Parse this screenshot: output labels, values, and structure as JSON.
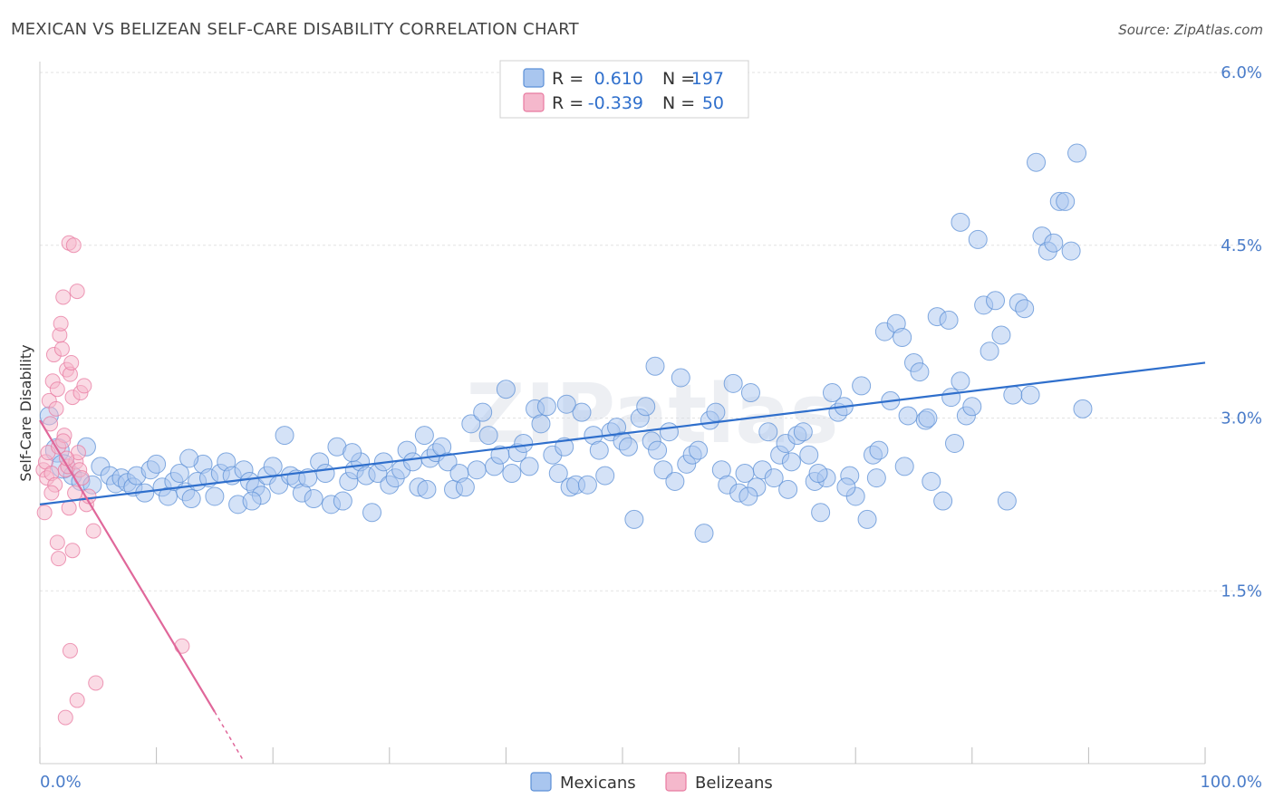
{
  "title": "MEXICAN VS BELIZEAN SELF-CARE DISABILITY CORRELATION CHART",
  "source": "Source: ZipAtlas.com",
  "watermark": "ZIPatlas",
  "colors": {
    "blue": "#5b8fd6",
    "blue_fill": "#a9c6ef",
    "pink": "#e87aa0",
    "pink_fill": "#f5b8cc",
    "blue_line": "#2f6fcc",
    "pink_line": "#e0679a",
    "tick_text": "#4a7cc9"
  },
  "legend_top": {
    "rows": [
      {
        "r_label": "R =",
        "r_value": "0.610",
        "n_label": "N =",
        "n_value": "197"
      },
      {
        "r_label": "R =",
        "r_value": "-0.339",
        "n_label": "N =",
        "n_value": "50"
      }
    ]
  },
  "legend_bottom": {
    "items": [
      "Mexicans",
      "Belizeans"
    ]
  },
  "chart_data": {
    "type": "scatter",
    "title": "MEXICAN VS BELIZEAN SELF-CARE DISABILITY CORRELATION CHART",
    "xlabel": "",
    "ylabel": "Self-Care Disability",
    "xlim": [
      0,
      100
    ],
    "ylim": [
      0,
      6.0
    ],
    "x_tick_labels": [
      "0.0%",
      "100.0%"
    ],
    "y_ticks": [
      1.5,
      3.0,
      4.5,
      6.0
    ],
    "y_tick_labels": [
      "1.5%",
      "3.0%",
      "4.5%",
      "6.0%"
    ],
    "grid": true,
    "legend_placement": "top-center",
    "series": [
      {
        "name": "Mexicans",
        "color": "#5b8fd6",
        "trend": {
          "x": [
            0,
            100
          ],
          "y": [
            2.25,
            3.48
          ]
        },
        "points": [
          [
            1.5,
            2.72
          ],
          [
            2.0,
            2.58
          ],
          [
            2.8,
            2.5
          ],
          [
            3.5,
            2.45
          ],
          [
            4.5,
            2.42
          ],
          [
            5.2,
            2.58
          ],
          [
            6.0,
            2.5
          ],
          [
            6.5,
            2.43
          ],
          [
            7.0,
            2.48
          ],
          [
            7.5,
            2.44
          ],
          [
            8.0,
            2.4
          ],
          [
            8.3,
            2.5
          ],
          [
            9.0,
            2.35
          ],
          [
            9.5,
            2.55
          ],
          [
            10.0,
            2.6
          ],
          [
            10.5,
            2.4
          ],
          [
            11.0,
            2.32
          ],
          [
            11.5,
            2.45
          ],
          [
            12.0,
            2.52
          ],
          [
            12.5,
            2.36
          ],
          [
            13.0,
            2.3
          ],
          [
            13.5,
            2.45
          ],
          [
            14.0,
            2.6
          ],
          [
            14.5,
            2.48
          ],
          [
            15.0,
            2.32
          ],
          [
            15.5,
            2.52
          ],
          [
            16.0,
            2.62
          ],
          [
            16.5,
            2.5
          ],
          [
            17.0,
            2.25
          ],
          [
            17.5,
            2.55
          ],
          [
            18.0,
            2.45
          ],
          [
            18.5,
            2.4
          ],
          [
            19.0,
            2.33
          ],
          [
            19.5,
            2.5
          ],
          [
            20.0,
            2.58
          ],
          [
            20.5,
            2.42
          ],
          [
            21.0,
            2.85
          ],
          [
            21.5,
            2.5
          ],
          [
            22.0,
            2.47
          ],
          [
            22.5,
            2.35
          ],
          [
            23.0,
            2.48
          ],
          [
            23.5,
            2.3
          ],
          [
            24.0,
            2.62
          ],
          [
            24.5,
            2.52
          ],
          [
            25.0,
            2.25
          ],
          [
            25.5,
            2.75
          ],
          [
            26.0,
            2.28
          ],
          [
            26.5,
            2.45
          ],
          [
            27.0,
            2.55
          ],
          [
            27.5,
            2.62
          ],
          [
            28.0,
            2.5
          ],
          [
            28.5,
            2.18
          ],
          [
            29.0,
            2.52
          ],
          [
            29.5,
            2.62
          ],
          [
            30.0,
            2.42
          ],
          [
            30.5,
            2.48
          ],
          [
            31.0,
            2.55
          ],
          [
            31.5,
            2.72
          ],
          [
            32.0,
            2.62
          ],
          [
            32.5,
            2.4
          ],
          [
            33.0,
            2.85
          ],
          [
            33.5,
            2.65
          ],
          [
            34.0,
            2.7
          ],
          [
            34.5,
            2.75
          ],
          [
            35.0,
            2.62
          ],
          [
            35.5,
            2.38
          ],
          [
            36.0,
            2.52
          ],
          [
            36.5,
            2.4
          ],
          [
            37.0,
            2.95
          ],
          [
            37.5,
            2.55
          ],
          [
            38.0,
            3.05
          ],
          [
            38.5,
            2.85
          ],
          [
            39.0,
            2.58
          ],
          [
            39.5,
            2.68
          ],
          [
            40.0,
            3.25
          ],
          [
            40.5,
            2.52
          ],
          [
            41.0,
            2.7
          ],
          [
            41.5,
            2.78
          ],
          [
            42.0,
            2.58
          ],
          [
            42.5,
            3.08
          ],
          [
            43.0,
            2.95
          ],
          [
            43.5,
            3.1
          ],
          [
            44.0,
            2.68
          ],
          [
            44.5,
            2.52
          ],
          [
            45.0,
            2.75
          ],
          [
            45.5,
            2.4
          ],
          [
            46.0,
            2.42
          ],
          [
            46.5,
            3.05
          ],
          [
            47.0,
            2.42
          ],
          [
            47.5,
            2.85
          ],
          [
            48.0,
            2.72
          ],
          [
            48.5,
            2.5
          ],
          [
            49.0,
            2.88
          ],
          [
            49.5,
            2.92
          ],
          [
            50.0,
            2.8
          ],
          [
            50.5,
            2.75
          ],
          [
            51.0,
            2.12
          ],
          [
            51.5,
            3.0
          ],
          [
            52.0,
            3.1
          ],
          [
            52.5,
            2.8
          ],
          [
            53.0,
            2.72
          ],
          [
            53.5,
            2.55
          ],
          [
            54.0,
            2.88
          ],
          [
            54.5,
            2.45
          ],
          [
            55.0,
            3.35
          ],
          [
            55.5,
            2.6
          ],
          [
            56.0,
            2.68
          ],
          [
            56.5,
            2.72
          ],
          [
            57.0,
            2.0
          ],
          [
            57.5,
            2.98
          ],
          [
            58.0,
            3.05
          ],
          [
            58.5,
            2.55
          ],
          [
            59.0,
            2.42
          ],
          [
            59.5,
            3.3
          ],
          [
            60.0,
            2.35
          ],
          [
            60.5,
            2.52
          ],
          [
            61.0,
            3.22
          ],
          [
            61.5,
            2.4
          ],
          [
            62.0,
            2.55
          ],
          [
            62.5,
            2.88
          ],
          [
            63.0,
            2.48
          ],
          [
            63.5,
            2.68
          ],
          [
            64.0,
            2.78
          ],
          [
            64.5,
            2.62
          ],
          [
            65.0,
            2.85
          ],
          [
            65.5,
            2.88
          ],
          [
            66.0,
            2.68
          ],
          [
            66.5,
            2.45
          ],
          [
            67.0,
            2.18
          ],
          [
            67.5,
            2.48
          ],
          [
            68.0,
            3.22
          ],
          [
            68.5,
            3.05
          ],
          [
            69.0,
            3.1
          ],
          [
            69.5,
            2.5
          ],
          [
            70.0,
            2.32
          ],
          [
            70.5,
            3.28
          ],
          [
            71.0,
            2.12
          ],
          [
            71.5,
            2.68
          ],
          [
            72.0,
            2.72
          ],
          [
            72.5,
            3.75
          ],
          [
            73.0,
            3.15
          ],
          [
            73.5,
            3.82
          ],
          [
            74.0,
            3.7
          ],
          [
            74.5,
            3.02
          ],
          [
            75.0,
            3.48
          ],
          [
            75.5,
            3.4
          ],
          [
            76.0,
            2.98
          ],
          [
            76.5,
            2.45
          ],
          [
            77.0,
            3.88
          ],
          [
            77.5,
            2.28
          ],
          [
            78.0,
            3.85
          ],
          [
            78.5,
            2.78
          ],
          [
            79.0,
            3.32
          ],
          [
            79.5,
            3.02
          ],
          [
            80.0,
            3.1
          ],
          [
            80.5,
            4.55
          ],
          [
            81.0,
            3.98
          ],
          [
            81.5,
            3.58
          ],
          [
            82.0,
            4.02
          ],
          [
            82.5,
            3.72
          ],
          [
            83.0,
            2.28
          ],
          [
            83.5,
            3.2
          ],
          [
            84.0,
            4.0
          ],
          [
            84.5,
            3.95
          ],
          [
            85.0,
            3.2
          ],
          [
            85.5,
            5.22
          ],
          [
            86.0,
            4.58
          ],
          [
            86.5,
            4.45
          ],
          [
            87.0,
            4.52
          ],
          [
            87.5,
            4.88
          ],
          [
            88.0,
            4.88
          ],
          [
            88.5,
            4.45
          ],
          [
            89.0,
            5.3
          ],
          [
            89.5,
            3.08
          ],
          [
            79.0,
            4.7
          ],
          [
            0.8,
            3.02
          ],
          [
            4.0,
            2.75
          ],
          [
            12.8,
            2.65
          ],
          [
            18.2,
            2.28
          ],
          [
            26.8,
            2.7
          ],
          [
            33.2,
            2.38
          ],
          [
            45.2,
            3.12
          ],
          [
            52.8,
            3.45
          ],
          [
            60.8,
            2.32
          ],
          [
            64.2,
            2.38
          ],
          [
            66.8,
            2.52
          ],
          [
            69.2,
            2.4
          ],
          [
            71.8,
            2.48
          ],
          [
            74.2,
            2.58
          ],
          [
            76.2,
            3.0
          ],
          [
            78.2,
            3.18
          ]
        ]
      },
      {
        "name": "Belizeans",
        "color": "#e87aa0",
        "trend": {
          "x": [
            0,
            15
          ],
          "y": [
            2.98,
            0.45
          ],
          "dashed_extension": {
            "x": [
              15,
              17.5
            ],
            "y": [
              0.45,
              0.02
            ]
          }
        },
        "points": [
          [
            0.3,
            2.55
          ],
          [
            0.5,
            2.62
          ],
          [
            0.6,
            2.48
          ],
          [
            0.7,
            2.7
          ],
          [
            0.8,
            3.15
          ],
          [
            0.9,
            2.95
          ],
          [
            1.0,
            2.52
          ],
          [
            1.1,
            3.32
          ],
          [
            1.2,
            3.55
          ],
          [
            1.3,
            2.42
          ],
          [
            1.4,
            3.08
          ],
          [
            1.5,
            3.25
          ],
          [
            1.6,
            2.75
          ],
          [
            1.7,
            3.72
          ],
          [
            1.8,
            3.82
          ],
          [
            1.9,
            3.6
          ],
          [
            2.0,
            4.05
          ],
          [
            2.1,
            2.85
          ],
          [
            2.2,
            2.55
          ],
          [
            2.3,
            3.42
          ],
          [
            2.4,
            2.58
          ],
          [
            2.5,
            4.52
          ],
          [
            2.6,
            3.38
          ],
          [
            2.7,
            3.48
          ],
          [
            2.8,
            3.18
          ],
          [
            2.9,
            4.5
          ],
          [
            3.0,
            2.35
          ],
          [
            3.1,
            2.62
          ],
          [
            3.2,
            4.1
          ],
          [
            3.3,
            2.7
          ],
          [
            3.4,
            2.55
          ],
          [
            3.5,
            3.22
          ],
          [
            3.6,
            2.48
          ],
          [
            3.8,
            3.28
          ],
          [
            4.0,
            2.25
          ],
          [
            4.2,
            2.32
          ],
          [
            2.5,
            2.22
          ],
          [
            1.5,
            1.92
          ],
          [
            1.6,
            1.78
          ],
          [
            2.8,
            1.85
          ],
          [
            4.6,
            2.02
          ],
          [
            2.6,
            0.98
          ],
          [
            3.2,
            0.55
          ],
          [
            2.2,
            0.4
          ],
          [
            4.8,
            0.7
          ],
          [
            12.2,
            1.02
          ],
          [
            0.4,
            2.18
          ],
          [
            1.0,
            2.35
          ],
          [
            2.0,
            2.8
          ],
          [
            2.3,
            2.65
          ]
        ]
      }
    ]
  }
}
